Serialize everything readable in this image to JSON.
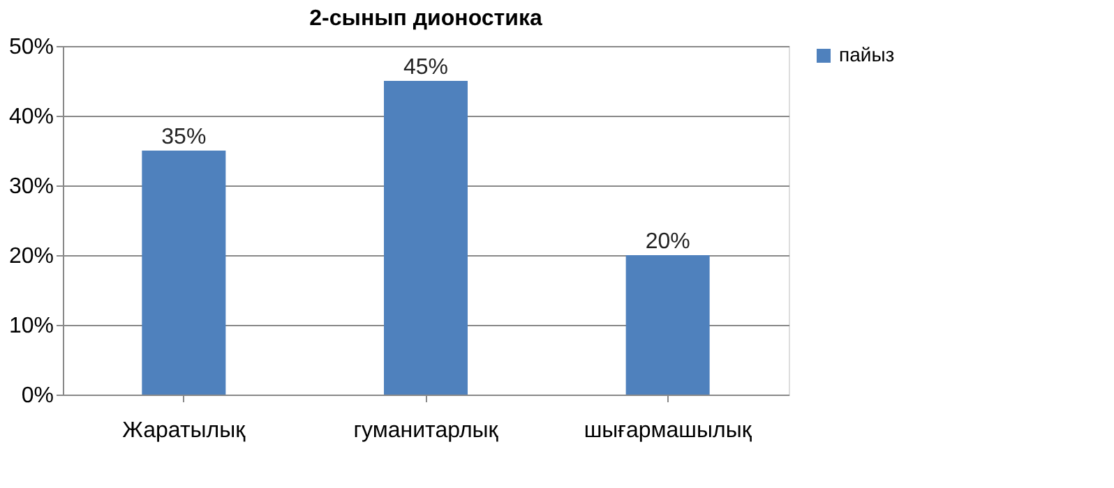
{
  "chart_data": {
    "type": "bar",
    "title": "2-сынып дионостика",
    "categories": [
      "Жаратылық",
      "гуманитарлық",
      "шығармашылық"
    ],
    "series": [
      {
        "name": "пайыз",
        "color": "#4f81bd",
        "values": [
          35,
          45,
          20
        ],
        "value_labels": [
          "35%",
          "45%",
          "20%"
        ]
      }
    ],
    "ylim": [
      0,
      50
    ],
    "yticks": [
      {
        "value": 0,
        "label": "0%"
      },
      {
        "value": 10,
        "label": "10%"
      },
      {
        "value": 20,
        "label": "20%"
      },
      {
        "value": 30,
        "label": "30%"
      },
      {
        "value": 40,
        "label": "40%"
      },
      {
        "value": 50,
        "label": "50%"
      }
    ],
    "grid": "y",
    "legend": "right"
  }
}
